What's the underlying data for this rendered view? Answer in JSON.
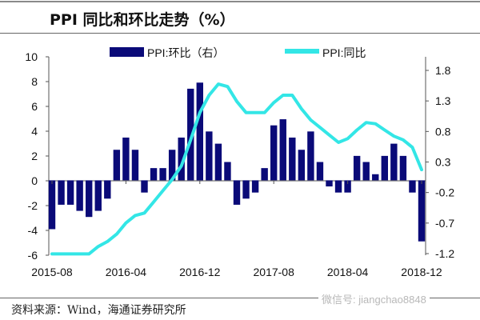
{
  "title": "PPI 同比和环比走势（%）",
  "source": "资料来源：Wind，海通证券研究所",
  "watermark": "微信号: jiangchao8848",
  "chart_data": {
    "type": "bar+line",
    "title": "PPI 同比和环比走势（%）",
    "categories": [
      "2015-08",
      "2015-09",
      "2015-10",
      "2015-11",
      "2015-12",
      "2016-01",
      "2016-02",
      "2016-03",
      "2016-04",
      "2016-05",
      "2016-06",
      "2016-07",
      "2016-08",
      "2016-09",
      "2016-10",
      "2016-11",
      "2016-12",
      "2017-01",
      "2017-02",
      "2017-03",
      "2017-04",
      "2017-05",
      "2017-06",
      "2017-07",
      "2017-08",
      "2017-09",
      "2017-10",
      "2017-11",
      "2017-12",
      "2018-01",
      "2018-02",
      "2018-03",
      "2018-04",
      "2018-05",
      "2018-06",
      "2018-07",
      "2018-08",
      "2018-09",
      "2018-10",
      "2018-11",
      "2018-12"
    ],
    "x_tick_labels": [
      "2015-08",
      "2016-04",
      "2016-12",
      "2017-08",
      "2018-04",
      "2018-12"
    ],
    "series": [
      {
        "name": "PPI:环比（右）",
        "type": "bar",
        "axis": "right",
        "color": "#0a0a78",
        "values": [
          -0.8,
          -0.4,
          -0.4,
          -0.5,
          -0.6,
          -0.5,
          -0.3,
          0.5,
          0.7,
          0.5,
          -0.2,
          0.2,
          0.2,
          0.5,
          0.7,
          1.5,
          1.6,
          0.8,
          0.6,
          0.3,
          -0.4,
          -0.3,
          -0.2,
          0.2,
          0.9,
          1.0,
          0.7,
          0.5,
          0.8,
          0.3,
          -0.1,
          -0.2,
          -0.2,
          0.4,
          0.3,
          0.1,
          0.4,
          0.6,
          0.4,
          -0.2,
          -1.0
        ]
      },
      {
        "name": "PPI:同比",
        "type": "line",
        "axis": "left",
        "color": "#33e6e6",
        "values": [
          -5.9,
          -5.9,
          -5.9,
          -5.9,
          -5.9,
          -5.3,
          -4.9,
          -4.3,
          -3.4,
          -2.8,
          -2.6,
          -1.7,
          -0.8,
          0.1,
          1.2,
          3.3,
          5.5,
          6.9,
          7.8,
          7.6,
          6.4,
          5.5,
          5.5,
          5.5,
          6.3,
          6.9,
          6.9,
          5.8,
          4.9,
          4.3,
          3.7,
          3.1,
          3.4,
          4.1,
          4.7,
          4.6,
          4.1,
          3.6,
          3.3,
          2.7,
          0.9
        ]
      }
    ],
    "left_axis": {
      "ylim": [
        -6,
        10
      ],
      "ticks": [
        "10",
        "8",
        "6",
        "4",
        "2",
        "0",
        "-2",
        "-4",
        "-6"
      ]
    },
    "right_axis": {
      "ylim": [
        -1.2,
        1.8
      ],
      "ticks": [
        "1.8",
        "1.3",
        "0.8",
        "0.3",
        "-0.2",
        "-0.7",
        "-1.2"
      ]
    },
    "legend_placement": "top",
    "grid": false
  }
}
